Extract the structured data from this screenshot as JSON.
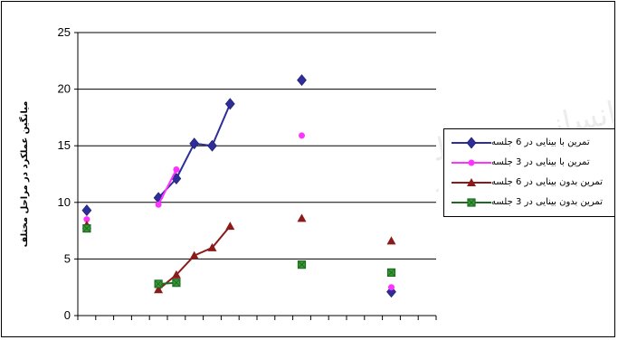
{
  "chart_data": {
    "type": "line",
    "title": "",
    "xlabel": "",
    "ylabel": "میانگین عملکرد در مراحل مختلف",
    "ylim": [
      0,
      25
    ],
    "yticks": [
      "0",
      "5",
      "10",
      "15",
      "20",
      "25"
    ],
    "x_count": 20,
    "grid": "horizontal",
    "legend_position": "right",
    "series": [
      {
        "name": "تمرین با بینایی در 6 جلسه",
        "color": "#2E2E9A",
        "marker": "diamond",
        "points": [
          [
            0,
            9.3
          ],
          [
            4,
            10.4
          ],
          [
            5,
            12.1
          ],
          [
            6,
            15.2
          ],
          [
            7,
            15.0
          ],
          [
            8,
            18.7
          ],
          [
            12,
            20.8
          ],
          [
            17,
            2.1
          ]
        ],
        "segments": [
          [
            1,
            2,
            3,
            4,
            5
          ]
        ]
      },
      {
        "name": "تمرین با بینایی در 3 جلسه",
        "color": "#FF33FF",
        "marker": "circle",
        "points": [
          [
            0,
            8.5
          ],
          [
            4,
            9.8
          ],
          [
            5,
            12.9
          ],
          [
            12,
            15.9
          ],
          [
            17,
            2.5
          ]
        ],
        "segments": [
          [
            1,
            2
          ]
        ]
      },
      {
        "name": "تمرین بدون بینایی در 6 جلسه",
        "color": "#8B1A1A",
        "marker": "triangle",
        "points": [
          [
            0,
            8.0
          ],
          [
            4,
            2.3
          ],
          [
            5,
            3.6
          ],
          [
            6,
            5.3
          ],
          [
            7,
            6.0
          ],
          [
            8,
            7.9
          ],
          [
            12,
            8.6
          ],
          [
            17,
            6.6
          ]
        ],
        "segments": [
          [
            1,
            2,
            3,
            4,
            5
          ]
        ]
      },
      {
        "name": "تمرین بدون بینایی در 3 جلسه",
        "color": "#1E6B1E",
        "marker": "square",
        "points": [
          [
            0,
            7.7
          ],
          [
            4,
            2.8
          ],
          [
            5,
            2.9
          ],
          [
            12,
            4.5
          ],
          [
            17,
            3.8
          ]
        ],
        "segments": [
          [
            1,
            2
          ]
        ]
      }
    ]
  }
}
